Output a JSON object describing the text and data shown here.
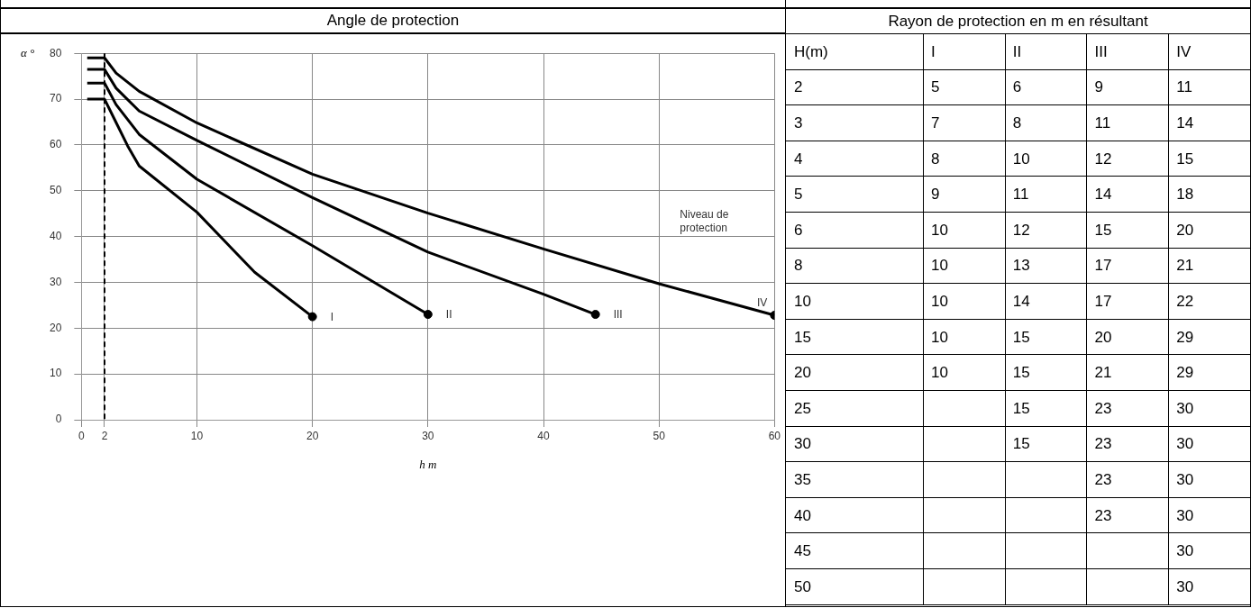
{
  "chart_data": [
    {
      "type": "line",
      "title": "Angle de protection",
      "xlabel": "h m",
      "ylabel": "α °",
      "xlim": [
        0,
        60
      ],
      "xticks": [
        0,
        2,
        10,
        20,
        30,
        40,
        50,
        60
      ],
      "ylim": [
        0,
        80
      ],
      "yticks": [
        0,
        10,
        20,
        30,
        40,
        50,
        60,
        70,
        80
      ],
      "grid": true,
      "legend": false,
      "marker": "none",
      "line_style": "solid",
      "ref_lines": [
        {
          "axis": "x",
          "value": 2,
          "line_style": "dashed",
          "color": "#000000"
        }
      ],
      "annotations": [
        "Niveau de protection"
      ],
      "series": [
        {
          "name": "I",
          "color": "#000000",
          "x": [
            0.5,
            2,
            3,
            4,
            5,
            10,
            15,
            20
          ],
          "values": [
            70,
            70,
            64.9,
            59.8,
            55.4,
            45.3,
            32.2,
            22.5
          ]
        },
        {
          "name": "II",
          "color": "#000000",
          "x": [
            0.5,
            2,
            3,
            5,
            10,
            20,
            30
          ],
          "values": [
            73.5,
            73.5,
            68.8,
            62.3,
            52.5,
            38,
            23
          ]
        },
        {
          "name": "III",
          "color": "#000000",
          "x": [
            0.5,
            2,
            3,
            5,
            10,
            20,
            30,
            40,
            44.5
          ],
          "values": [
            76.5,
            76.5,
            72.4,
            67.4,
            61,
            48.5,
            36.6,
            27.4,
            23
          ]
        },
        {
          "name": "IV",
          "color": "#000000",
          "x": [
            0.5,
            2,
            3,
            5,
            10,
            20,
            30,
            40,
            50,
            60
          ],
          "values": [
            79,
            79,
            75.7,
            71.7,
            64.8,
            53.6,
            45.1,
            37.3,
            29.7,
            22.8
          ]
        },
        {
          "type": "scatter",
          "marker": "circle",
          "color": "#000000",
          "x": [
            20,
            30,
            44.5,
            60
          ],
          "values": [
            22.5,
            23,
            23,
            22.8
          ]
        }
      ]
    },
    {
      "type": "heatmap",
      "title": "Rayon de protection en m en résultant",
      "ylabel": "H(m)",
      "data_labels": true,
      "categories": [
        "I",
        "II",
        "III",
        "IV"
      ],
      "y_categories": [
        "2",
        "3",
        "4",
        "5",
        "6",
        "8",
        "10",
        "15",
        "20",
        "25",
        "30",
        "35",
        "40",
        "45",
        "50"
      ],
      "cells": [
        [
          5,
          6,
          9,
          11
        ],
        [
          7,
          8,
          11,
          14
        ],
        [
          8,
          10,
          12,
          15
        ],
        [
          9,
          11,
          14,
          18
        ],
        [
          10,
          12,
          15,
          20
        ],
        [
          10,
          13,
          17,
          21
        ],
        [
          10,
          14,
          17,
          22
        ],
        [
          10,
          15,
          20,
          29
        ],
        [
          10,
          15,
          21,
          29
        ],
        [
          null,
          15,
          23,
          30
        ],
        [
          null,
          15,
          23,
          30
        ],
        [
          null,
          null,
          23,
          30
        ],
        [
          null,
          null,
          23,
          30
        ],
        [
          null,
          null,
          null,
          30
        ],
        [
          null,
          null,
          null,
          30
        ]
      ]
    }
  ]
}
